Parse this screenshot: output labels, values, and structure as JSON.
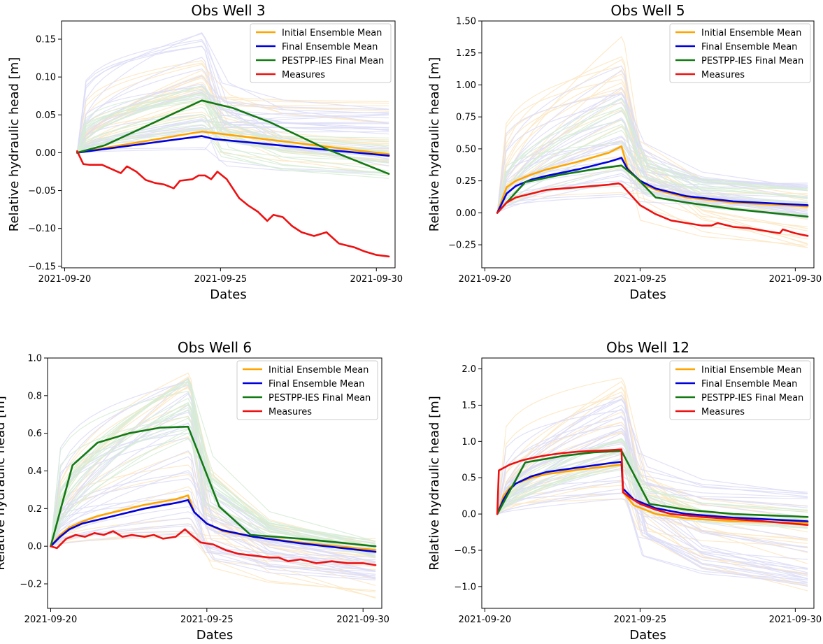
{
  "figure": {
    "xlabel": "Dates",
    "ylabel": "Relative hydraulic head [m]"
  },
  "legend": [
    {
      "label": "Initial Ensemble Mean",
      "color": "#ffa500"
    },
    {
      "label": "Final Ensemble Mean",
      "color": "#0000dd"
    },
    {
      "label": "PESTPP-IES Final Mean",
      "color": "#137a13"
    },
    {
      "label": "Measures",
      "color": "#ee1111"
    }
  ],
  "colors": {
    "ens_initial": "#fbe6c2",
    "ens_final": "#dcdcf7",
    "ens_pestpp": "#d6ecd6"
  },
  "chart_data": [
    {
      "type": "line",
      "title": "Obs Well 3",
      "xlabel": "Dates",
      "ylabel": "Relative hydraulic head [m]",
      "xlim": [
        -0.1,
        10.6
      ],
      "ylim": [
        -0.152,
        0.174
      ],
      "yticks": [
        -0.15,
        -0.1,
        -0.05,
        0.0,
        0.05,
        0.1,
        0.15
      ],
      "ytick_labels": [
        "−0.15",
        "−0.10",
        "−0.05",
        "0.00",
        "0.05",
        "0.10",
        "0.15"
      ],
      "xticks": [
        0,
        5,
        10
      ],
      "xtick_labels": [
        "2021-09-20",
        "2021-09-25",
        "2021-09-30"
      ],
      "legend_position": "top-right",
      "series": [
        {
          "name": "Initial Ensemble Mean",
          "x": [
            0.4,
            4.4,
            10.4
          ],
          "y": [
            0.0,
            0.028,
            -0.002
          ]
        },
        {
          "name": "Final Ensemble Mean",
          "x": [
            0.4,
            4.4,
            4.8,
            10.4
          ],
          "y": [
            0.0,
            0.022,
            0.018,
            -0.004
          ]
        },
        {
          "name": "PESTPP-IES Final Mean",
          "x": [
            0.4,
            1.3,
            4.4,
            5.4,
            6.6,
            8.4,
            10.4
          ],
          "y": [
            0.0,
            0.01,
            0.069,
            0.059,
            0.04,
            0.005,
            -0.028
          ]
        },
        {
          "name": "Measures",
          "x": [
            0.4,
            0.6,
            0.8,
            1.2,
            1.8,
            2.0,
            2.3,
            2.6,
            2.9,
            3.2,
            3.5,
            3.7,
            3.9,
            4.1,
            4.3,
            4.5,
            4.7,
            4.9,
            5.2,
            5.6,
            5.9,
            6.2,
            6.5,
            6.7,
            7.0,
            7.3,
            7.6,
            8.0,
            8.4,
            8.8,
            9.0,
            9.3,
            9.6,
            10.0,
            10.4
          ],
          "y": [
            0.002,
            -0.015,
            -0.016,
            -0.016,
            -0.027,
            -0.018,
            -0.025,
            -0.036,
            -0.04,
            -0.042,
            -0.047,
            -0.037,
            -0.036,
            -0.035,
            -0.03,
            -0.03,
            -0.035,
            -0.025,
            -0.035,
            -0.06,
            -0.07,
            -0.078,
            -0.09,
            -0.082,
            -0.085,
            -0.097,
            -0.105,
            -0.11,
            -0.105,
            -0.12,
            -0.122,
            -0.125,
            -0.13,
            -0.135,
            -0.137
          ]
        }
      ],
      "ensembles": [
        {
          "name": "initial",
          "count": 20,
          "peak_range": [
            0.02,
            0.14
          ],
          "end_range": [
            -0.03,
            0.07
          ]
        },
        {
          "name": "final",
          "count": 28,
          "peak_range": [
            -0.01,
            0.16
          ],
          "end_range": [
            -0.04,
            0.06
          ]
        },
        {
          "name": "pestpp",
          "count": 18,
          "peak_range": [
            0.03,
            0.09
          ],
          "end_range": [
            -0.04,
            0.02
          ]
        }
      ]
    },
    {
      "type": "line",
      "title": "Obs Well 5",
      "xlabel": "Dates",
      "ylabel": "Relative hydraulic head [m]",
      "xlim": [
        -0.1,
        10.6
      ],
      "ylim": [
        -0.43,
        1.5
      ],
      "yticks": [
        -0.25,
        0.0,
        0.25,
        0.5,
        0.75,
        1.0,
        1.25,
        1.5
      ],
      "ytick_labels": [
        "−0.25",
        "0.00",
        "0.25",
        "0.50",
        "0.75",
        "1.00",
        "1.25",
        "1.50"
      ],
      "xticks": [
        0,
        5,
        10
      ],
      "xtick_labels": [
        "2021-09-20",
        "2021-09-25",
        "2021-09-30"
      ],
      "legend_position": "top-right",
      "series": [
        {
          "name": "Initial Ensemble Mean",
          "x": [
            0.4,
            0.7,
            1.0,
            1.5,
            2.0,
            3.0,
            4.0,
            4.4,
            4.6,
            5.0,
            5.5,
            6.5,
            8.0,
            10.4
          ],
          "y": [
            0.0,
            0.2,
            0.25,
            0.3,
            0.34,
            0.4,
            0.47,
            0.52,
            0.35,
            0.24,
            0.18,
            0.12,
            0.08,
            0.05
          ]
        },
        {
          "name": "Final Ensemble Mean",
          "x": [
            0.4,
            0.7,
            1.0,
            1.5,
            2.0,
            3.0,
            4.0,
            4.4,
            4.6,
            5.0,
            5.5,
            6.5,
            8.0,
            10.4
          ],
          "y": [
            0.0,
            0.15,
            0.21,
            0.26,
            0.29,
            0.34,
            0.4,
            0.43,
            0.34,
            0.25,
            0.19,
            0.13,
            0.09,
            0.06
          ]
        },
        {
          "name": "PESTPP-IES Final Mean",
          "x": [
            0.4,
            1.3,
            2.5,
            3.5,
            4.4,
            4.9,
            5.5,
            6.5,
            8.0,
            10.4
          ],
          "y": [
            0.0,
            0.24,
            0.3,
            0.34,
            0.37,
            0.27,
            0.12,
            0.08,
            0.03,
            -0.03
          ]
        },
        {
          "name": "Measures",
          "x": [
            0.4,
            0.7,
            1.0,
            1.5,
            2.0,
            2.5,
            3.0,
            3.5,
            4.0,
            4.3,
            4.4,
            4.7,
            5.0,
            5.5,
            6.0,
            6.5,
            7.0,
            7.3,
            7.5,
            8.0,
            8.5,
            9.0,
            9.5,
            9.6,
            10.0,
            10.4
          ],
          "y": [
            0.0,
            0.08,
            0.12,
            0.15,
            0.18,
            0.19,
            0.2,
            0.21,
            0.22,
            0.23,
            0.22,
            0.14,
            0.06,
            -0.01,
            -0.06,
            -0.08,
            -0.1,
            -0.1,
            -0.08,
            -0.11,
            -0.12,
            -0.14,
            -0.16,
            -0.13,
            -0.16,
            -0.18
          ]
        }
      ],
      "ensembles": [
        {
          "name": "initial",
          "count": 20,
          "peak_range": [
            0.1,
            1.4
          ],
          "end_range": [
            -0.3,
            0.2
          ]
        },
        {
          "name": "final",
          "count": 30,
          "peak_range": [
            0.1,
            1.15
          ],
          "end_range": [
            -0.05,
            0.25
          ]
        },
        {
          "name": "pestpp",
          "count": 14,
          "peak_range": [
            0.2,
            0.9
          ],
          "end_range": [
            -0.05,
            0.2
          ]
        }
      ]
    },
    {
      "type": "line",
      "title": "Obs Well 6",
      "xlabel": "Dates",
      "ylabel": "Relative hydraulic head [m]",
      "xlim": [
        -0.1,
        10.6
      ],
      "ylim": [
        -0.33,
        1.0
      ],
      "yticks": [
        -0.2,
        0.0,
        0.2,
        0.4,
        0.6,
        0.8,
        1.0
      ],
      "ytick_labels": [
        "−0.2",
        "0.0",
        "0.2",
        "0.4",
        "0.6",
        "0.8",
        "1.0"
      ],
      "xticks": [
        0,
        5,
        10
      ],
      "xtick_labels": [
        "2021-09-20",
        "2021-09-25",
        "2021-09-30"
      ],
      "legend_position": "top-right",
      "series": [
        {
          "name": "Initial Ensemble Mean",
          "x": [
            0.0,
            0.3,
            0.6,
            1.0,
            1.5,
            2.0,
            3.0,
            4.0,
            4.4,
            4.6,
            5.0,
            5.5,
            6.5,
            8.0,
            10.4
          ],
          "y": [
            0.0,
            0.06,
            0.1,
            0.13,
            0.16,
            0.18,
            0.22,
            0.25,
            0.27,
            0.18,
            0.12,
            0.08,
            0.05,
            0.02,
            -0.02
          ]
        },
        {
          "name": "Final Ensemble Mean",
          "x": [
            0.0,
            0.3,
            0.6,
            1.0,
            1.5,
            2.0,
            3.0,
            4.0,
            4.4,
            4.6,
            5.0,
            5.5,
            6.5,
            8.0,
            10.4
          ],
          "y": [
            0.0,
            0.05,
            0.09,
            0.12,
            0.14,
            0.16,
            0.2,
            0.23,
            0.245,
            0.18,
            0.12,
            0.085,
            0.05,
            0.015,
            -0.03
          ]
        },
        {
          "name": "PESTPP-IES Final Mean",
          "x": [
            0.0,
            0.7,
            1.5,
            2.5,
            3.5,
            4.4,
            5.4,
            6.4,
            8.0,
            10.4
          ],
          "y": [
            0.0,
            0.43,
            0.55,
            0.6,
            0.63,
            0.635,
            0.21,
            0.06,
            0.04,
            0.0
          ]
        },
        {
          "name": "Measures",
          "x": [
            0.0,
            0.2,
            0.5,
            0.8,
            1.1,
            1.4,
            1.7,
            2.0,
            2.3,
            2.6,
            3.0,
            3.3,
            3.6,
            4.0,
            4.3,
            4.5,
            4.8,
            5.2,
            5.6,
            6.0,
            6.5,
            7.0,
            7.3,
            7.6,
            8.0,
            8.5,
            9.0,
            9.5,
            10.0,
            10.4
          ],
          "y": [
            0.0,
            -0.01,
            0.04,
            0.06,
            0.05,
            0.07,
            0.06,
            0.08,
            0.05,
            0.06,
            0.05,
            0.06,
            0.04,
            0.05,
            0.09,
            0.06,
            0.02,
            0.01,
            -0.02,
            -0.04,
            -0.05,
            -0.06,
            -0.06,
            -0.08,
            -0.07,
            -0.09,
            -0.08,
            -0.09,
            -0.09,
            -0.1
          ]
        }
      ],
      "ensembles": [
        {
          "name": "initial",
          "count": 20,
          "peak_range": [
            0.05,
            0.95
          ],
          "end_range": [
            -0.28,
            0.05
          ]
        },
        {
          "name": "final",
          "count": 30,
          "peak_range": [
            0.05,
            0.95
          ],
          "end_range": [
            -0.2,
            0.04
          ]
        },
        {
          "name": "pestpp",
          "count": 18,
          "peak_range": [
            0.55,
            0.9
          ],
          "end_range": [
            -0.06,
            0.03
          ]
        }
      ]
    },
    {
      "type": "line",
      "title": "Obs Well 12",
      "xlabel": "Dates",
      "ylabel": "Relative hydraulic head [m]",
      "xlim": [
        -0.1,
        10.6
      ],
      "ylim": [
        -1.3,
        2.15
      ],
      "yticks": [
        -1.0,
        -0.5,
        0.0,
        0.5,
        1.0,
        1.5,
        2.0
      ],
      "ytick_labels": [
        "−1.0",
        "−0.5",
        "0.0",
        "0.5",
        "1.0",
        "1.5",
        "2.0"
      ],
      "xticks": [
        0,
        5,
        10
      ],
      "xtick_labels": [
        "2021-09-20",
        "2021-09-25",
        "2021-09-30"
      ],
      "legend_position": "top-right",
      "series": [
        {
          "name": "Initial Ensemble Mean",
          "x": [
            0.4,
            0.6,
            0.8,
            1.0,
            1.5,
            2.0,
            3.0,
            4.0,
            4.4,
            4.45,
            4.8,
            5.5,
            6.5,
            8.0,
            10.4
          ],
          "y": [
            0.0,
            0.25,
            0.36,
            0.42,
            0.5,
            0.55,
            0.61,
            0.66,
            0.68,
            0.3,
            0.12,
            0.0,
            -0.06,
            -0.1,
            -0.12
          ]
        },
        {
          "name": "Final Ensemble Mean",
          "x": [
            0.4,
            0.6,
            0.8,
            1.0,
            1.5,
            2.0,
            3.0,
            4.0,
            4.4,
            4.45,
            4.8,
            5.5,
            6.5,
            8.0,
            10.4
          ],
          "y": [
            0.0,
            0.2,
            0.34,
            0.42,
            0.52,
            0.58,
            0.64,
            0.7,
            0.72,
            0.35,
            0.2,
            0.08,
            0.0,
            -0.05,
            -0.1
          ]
        },
        {
          "name": "PESTPP-IES Final Mean",
          "x": [
            0.4,
            1.3,
            2.5,
            3.5,
            4.4,
            5.3,
            6.5,
            8.0,
            10.4
          ],
          "y": [
            0.0,
            0.71,
            0.8,
            0.85,
            0.87,
            0.14,
            0.06,
            0.0,
            -0.04
          ]
        },
        {
          "name": "Measures",
          "x": [
            0.4,
            0.45,
            0.8,
            1.2,
            1.6,
            2.0,
            2.5,
            3.0,
            3.5,
            4.0,
            4.4,
            4.45,
            4.7,
            5.0,
            5.5,
            6.0,
            7.0,
            8.0,
            9.0,
            10.4
          ],
          "y": [
            0.0,
            0.6,
            0.68,
            0.74,
            0.78,
            0.81,
            0.84,
            0.86,
            0.87,
            0.88,
            0.89,
            0.3,
            0.22,
            0.14,
            0.06,
            0.0,
            -0.04,
            -0.07,
            -0.1,
            -0.15
          ]
        }
      ],
      "ensembles": [
        {
          "name": "initial",
          "count": 22,
          "peak_range": [
            0.2,
            2.0
          ],
          "end_range": [
            -1.1,
            0.15
          ]
        },
        {
          "name": "final",
          "count": 30,
          "peak_range": [
            0.2,
            1.7
          ],
          "end_range": [
            -1.0,
            0.35
          ]
        },
        {
          "name": "pestpp",
          "count": 14,
          "peak_range": [
            0.6,
            1.05
          ],
          "end_range": [
            -0.2,
            0.1
          ]
        }
      ]
    }
  ]
}
